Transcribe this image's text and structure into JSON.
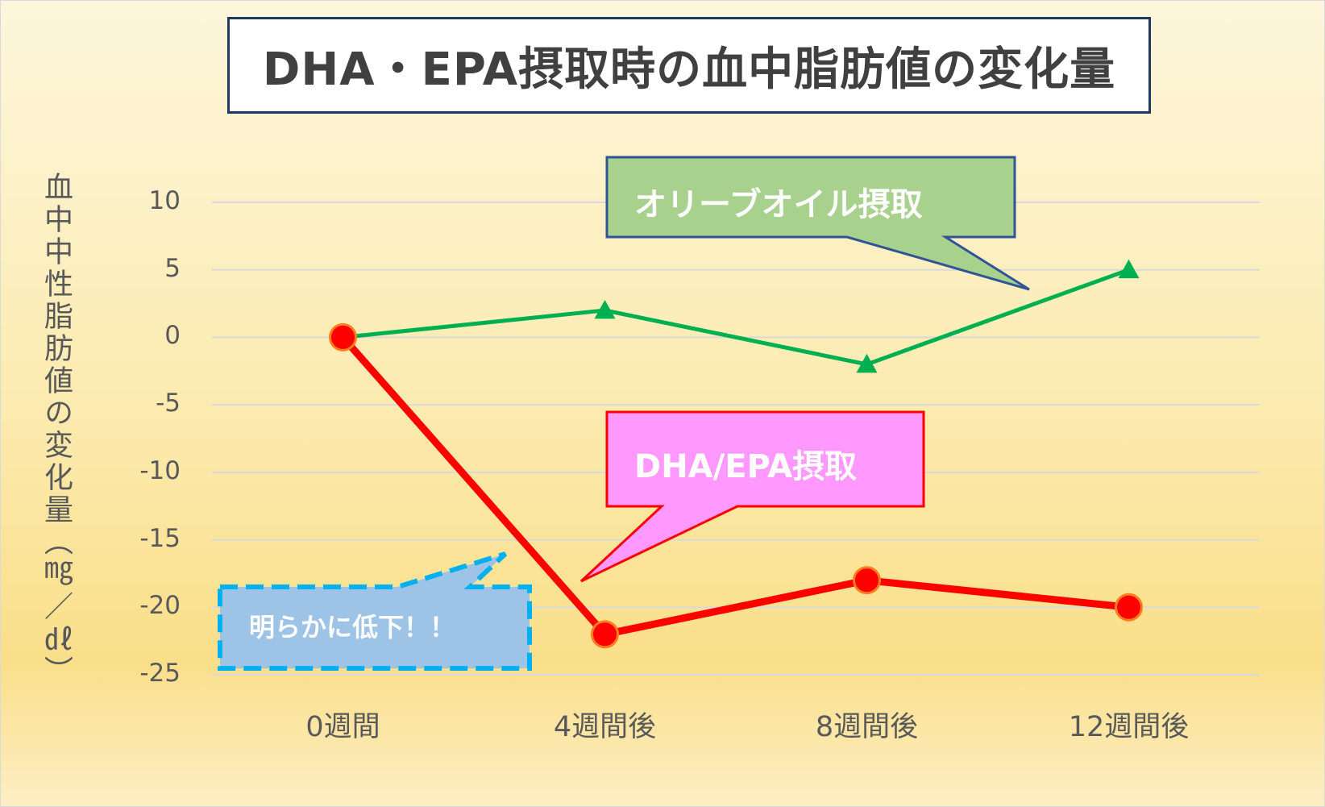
{
  "chart_data": {
    "type": "line",
    "title": "DHA・EPA摂取時の血中脂肪値の変化量",
    "ylabel": "血中中性脂肪値の変化量（㎎／㎗）",
    "xlabel": "",
    "categories": [
      "0週間",
      "4週間後",
      "8週間後",
      "12週間後"
    ],
    "yticks": [
      "10",
      "5",
      "0",
      "-5",
      "-10",
      "-15",
      "-20",
      "-25"
    ],
    "ylim": [
      -25,
      10
    ],
    "grid": true,
    "series": [
      {
        "name": "オリーブオイル摂取",
        "values": [
          0,
          2,
          -2,
          5
        ],
        "color": "#00b050",
        "marker": "triangle"
      },
      {
        "name": "DHA/EPA摂取",
        "values": [
          0,
          -22,
          -18,
          -20
        ],
        "color": "#ff0000",
        "marker": "circle"
      }
    ],
    "annotations": {
      "olive": {
        "text": "オリーブオイル摂取",
        "fill": "#a9d18e",
        "border": "#2f5597"
      },
      "dha": {
        "text": "DHA/EPA摂取",
        "fill": "#ff99ff",
        "border": "#ff0000"
      },
      "note": {
        "text": "明らかに低下！！",
        "fill": "#9dc3e6",
        "border": "#00b0f0"
      }
    }
  }
}
